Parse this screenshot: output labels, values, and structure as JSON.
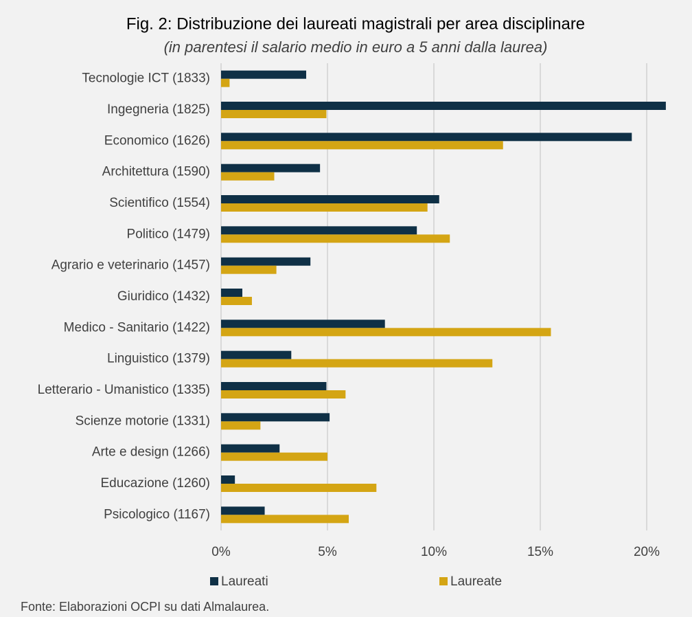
{
  "chart_data": {
    "type": "bar",
    "orientation": "horizontal",
    "title": "Fig. 2: Distribuzione dei laureati magistrali per area disciplinare",
    "subtitle": "(in parentesi il salario medio in euro a 5 anni dalla laurea)",
    "categories": [
      "Tecnologie ICT (1833)",
      "Ingegneria (1825)",
      "Economico (1626)",
      "Architettura (1590)",
      "Scientifico (1554)",
      "Politico (1479)",
      "Agrario e veterinario (1457)",
      "Giuridico (1432)",
      "Medico - Sanitario (1422)",
      "Linguistico (1379)",
      "Letterario - Umanistico (1335)",
      "Scienze motorie (1331)",
      "Arte e design (1266)",
      "Educazione (1260)",
      "Psicologico (1167)"
    ],
    "series": [
      {
        "name": "Laureati",
        "color": "#0f3046",
        "values": [
          4.0,
          20.9,
          19.3,
          4.65,
          10.25,
          9.2,
          4.2,
          1.0,
          7.7,
          3.3,
          4.95,
          5.1,
          2.75,
          0.65,
          2.05
        ]
      },
      {
        "name": "Laureate",
        "color": "#d4a514",
        "values": [
          0.4,
          4.95,
          13.25,
          2.5,
          9.7,
          10.75,
          2.6,
          1.45,
          15.5,
          12.75,
          5.85,
          1.85,
          5.0,
          7.3,
          6.0
        ]
      }
    ],
    "xlim": [
      0,
      21
    ],
    "xticks": [
      {
        "value": 0,
        "label": "0%"
      },
      {
        "value": 5,
        "label": "5%"
      },
      {
        "value": 10,
        "label": "10%"
      },
      {
        "value": 15,
        "label": "15%"
      },
      {
        "value": 20,
        "label": "20%"
      }
    ],
    "grid": true,
    "legend": "bottom",
    "source": "Fonte: Elaborazioni OCPI su dati Almalaurea."
  }
}
